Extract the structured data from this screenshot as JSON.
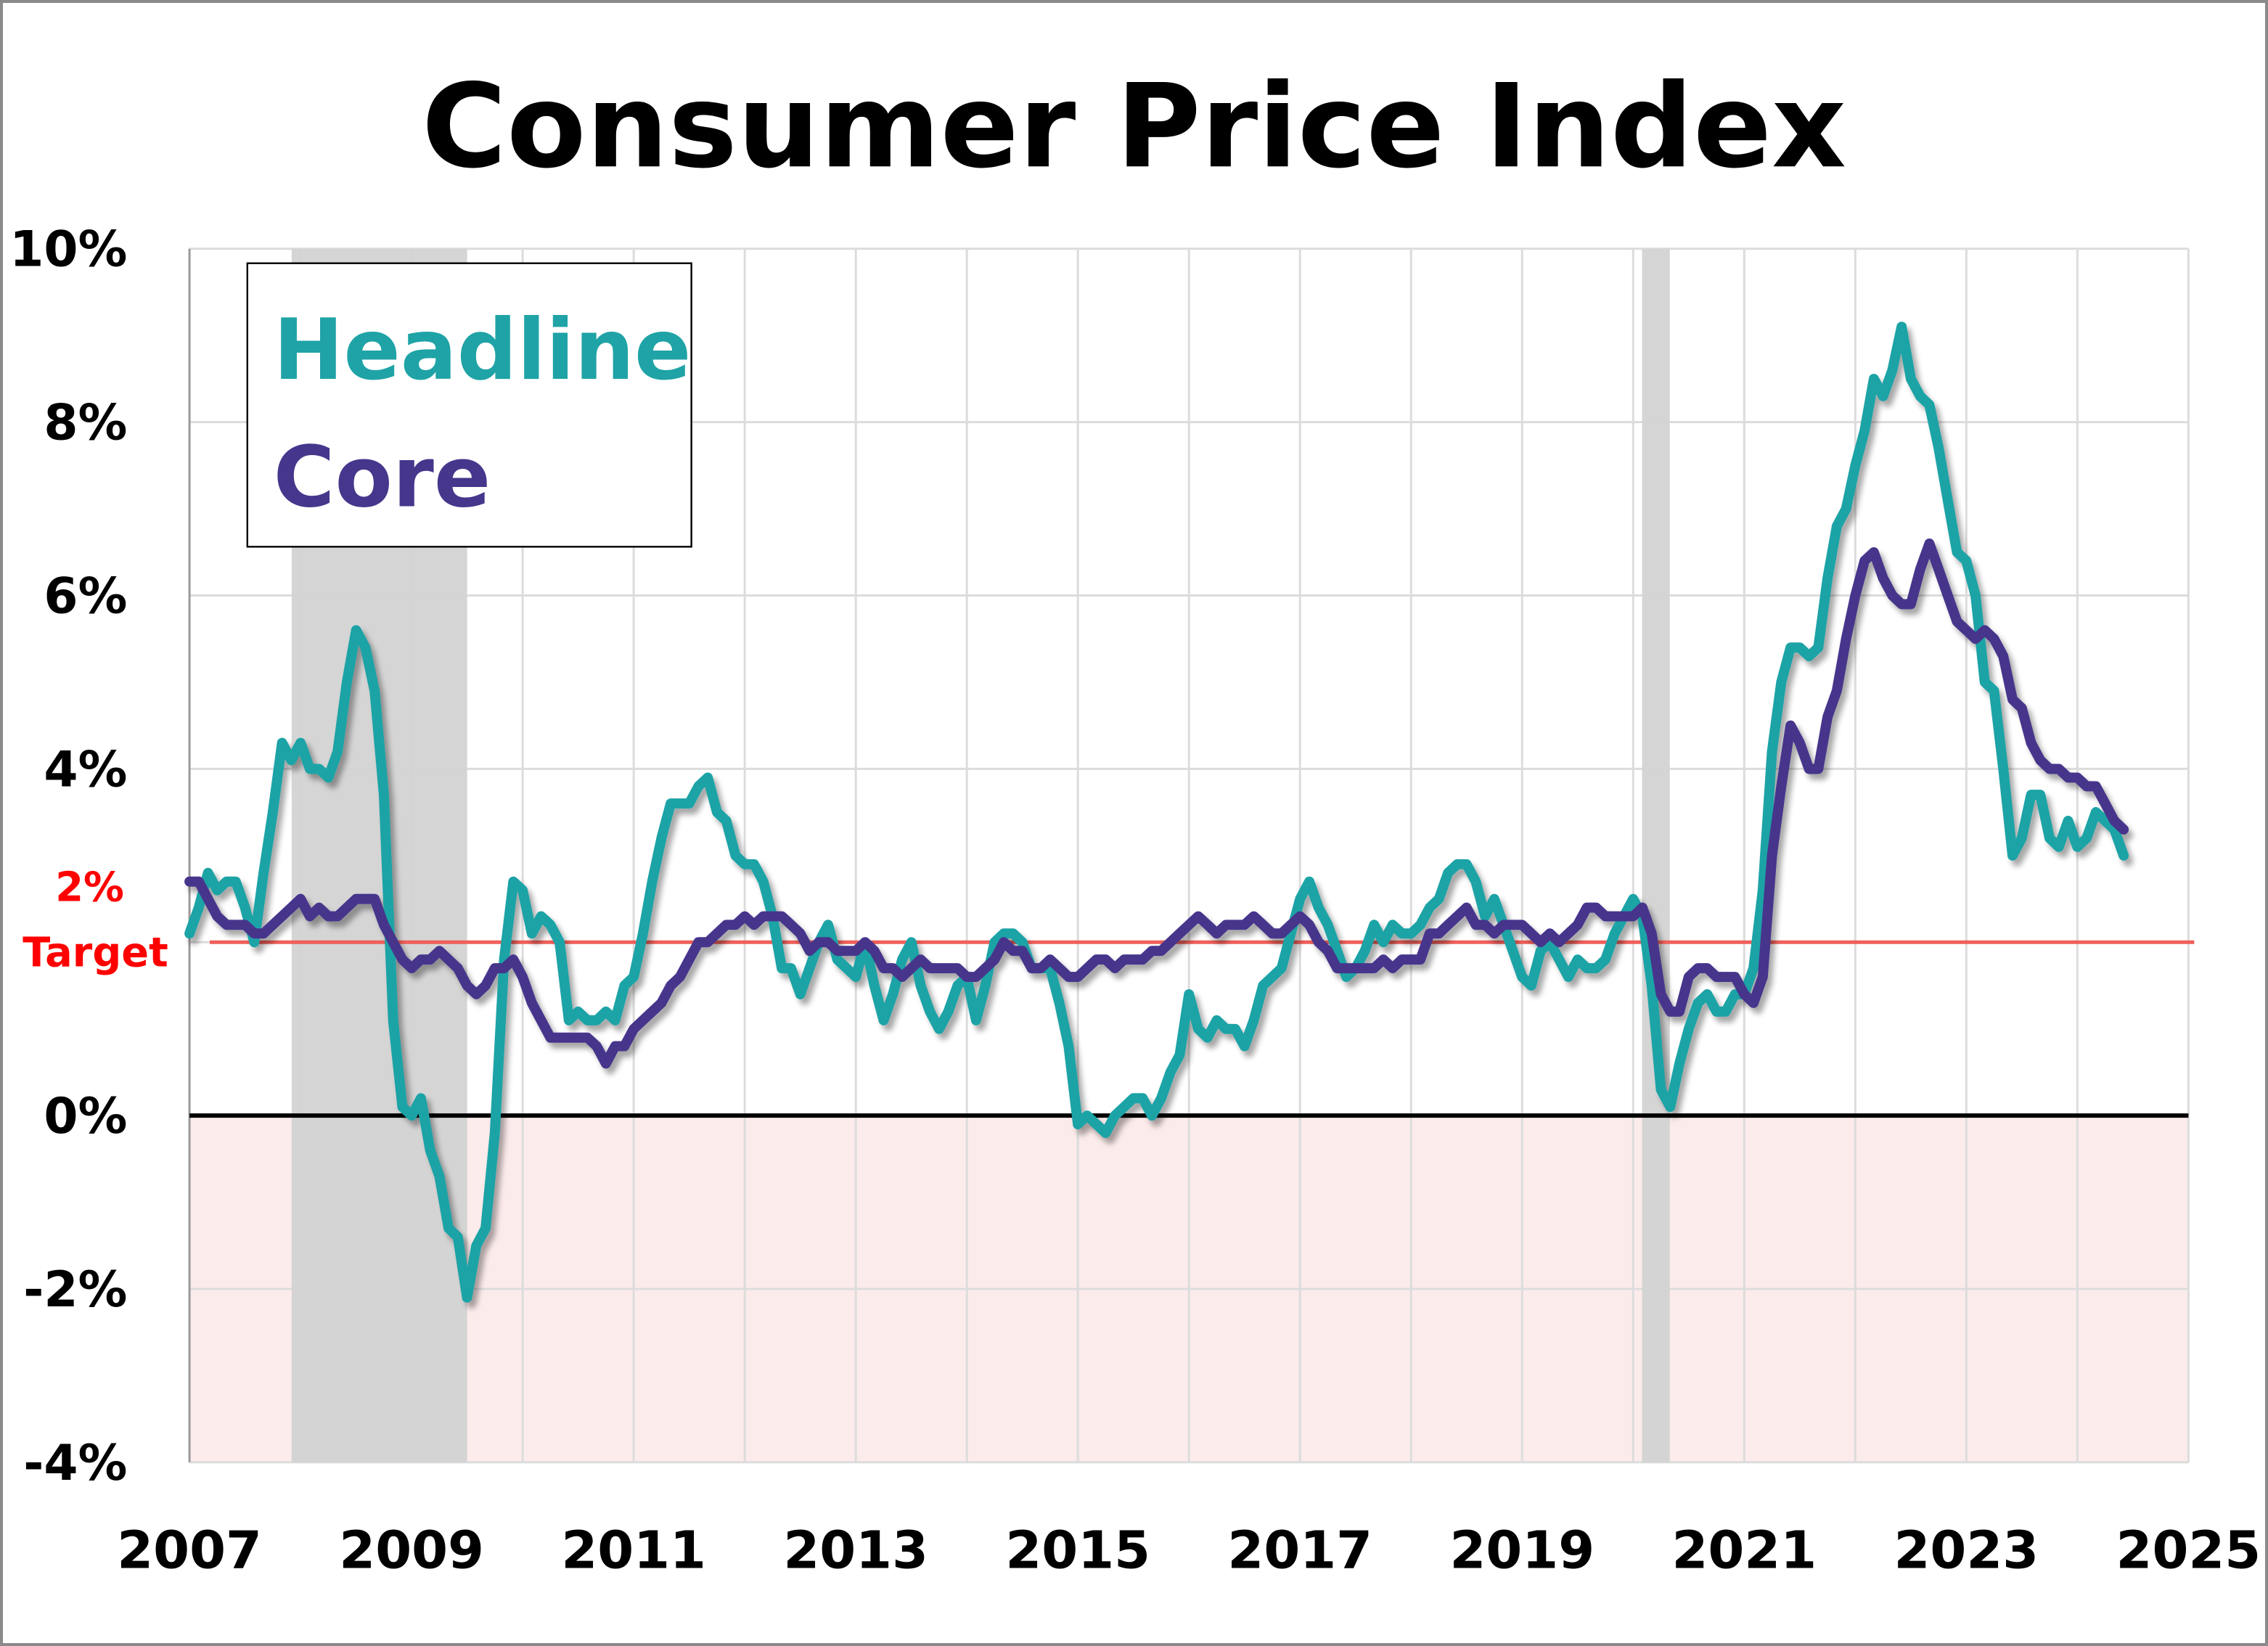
{
  "chart_data": {
    "type": "line",
    "title": "Consumer Price Index",
    "xlabel": "",
    "ylabel": "",
    "xlim": [
      2007,
      2025
    ],
    "ylim": [
      -4,
      10
    ],
    "x_ticks": [
      "2007",
      "2009",
      "2011",
      "2013",
      "2015",
      "2017",
      "2019",
      "2021",
      "2023",
      "2025"
    ],
    "y_ticks": [
      "10%",
      "8%",
      "6%",
      "4%",
      "2%",
      "0%",
      "-2%",
      "-4%"
    ],
    "y_tick_values": [
      10,
      8,
      6,
      4,
      2,
      0,
      -2,
      -4
    ],
    "grid": true,
    "legend": {
      "placement": "top-left",
      "entries": [
        "Headline",
        "Core"
      ]
    },
    "target": {
      "value": 2,
      "label_top": "2%",
      "label_bottom": "Target",
      "color": "#F0605A"
    },
    "recessions": [
      [
        2007.92,
        2009.5
      ],
      [
        2020.08,
        2020.33
      ]
    ],
    "start": "2007-01",
    "frequency": "monthly",
    "colors": {
      "Headline": "#1FA3A6",
      "Core": "#46368C",
      "target_text": "#FF0000",
      "deflation_zone": "#FCEBEB",
      "recession": "#D3D3D3"
    },
    "series": [
      {
        "name": "Headline",
        "values": [
          2.1,
          2.4,
          2.8,
          2.6,
          2.7,
          2.7,
          2.4,
          2.0,
          2.8,
          3.5,
          4.3,
          4.1,
          4.3,
          4.0,
          4.0,
          3.9,
          4.2,
          5.0,
          5.6,
          5.4,
          4.9,
          3.7,
          1.1,
          0.1,
          0.0,
          0.2,
          -0.4,
          -0.7,
          -1.3,
          -1.4,
          -2.1,
          -1.5,
          -1.3,
          -0.2,
          1.8,
          2.7,
          2.6,
          2.1,
          2.3,
          2.2,
          2.0,
          1.1,
          1.2,
          1.1,
          1.1,
          1.2,
          1.1,
          1.5,
          1.6,
          2.1,
          2.7,
          3.2,
          3.6,
          3.6,
          3.6,
          3.8,
          3.9,
          3.5,
          3.4,
          3.0,
          2.9,
          2.9,
          2.7,
          2.3,
          1.7,
          1.7,
          1.4,
          1.7,
          2.0,
          2.2,
          1.8,
          1.7,
          1.6,
          2.0,
          1.5,
          1.1,
          1.4,
          1.8,
          2.0,
          1.5,
          1.2,
          1.0,
          1.2,
          1.5,
          1.6,
          1.1,
          1.5,
          2.0,
          2.1,
          2.1,
          2.0,
          1.7,
          1.7,
          1.7,
          1.3,
          0.8,
          -0.1,
          0.0,
          -0.1,
          -0.2,
          0.0,
          0.1,
          0.2,
          0.2,
          0.0,
          0.2,
          0.5,
          0.7,
          1.4,
          1.0,
          0.9,
          1.1,
          1.0,
          1.0,
          0.8,
          1.1,
          1.5,
          1.6,
          1.7,
          2.1,
          2.5,
          2.7,
          2.4,
          2.2,
          1.9,
          1.6,
          1.7,
          1.9,
          2.2,
          2.0,
          2.2,
          2.1,
          2.1,
          2.2,
          2.4,
          2.5,
          2.8,
          2.9,
          2.9,
          2.7,
          2.3,
          2.5,
          2.2,
          1.9,
          1.6,
          1.5,
          1.9,
          2.0,
          1.8,
          1.6,
          1.8,
          1.7,
          1.7,
          1.8,
          2.1,
          2.3,
          2.5,
          2.3,
          1.5,
          0.3,
          0.1,
          0.6,
          1.0,
          1.3,
          1.4,
          1.2,
          1.2,
          1.4,
          1.4,
          1.7,
          2.6,
          4.2,
          5.0,
          5.4,
          5.4,
          5.3,
          5.4,
          6.2,
          6.8,
          7.0,
          7.5,
          7.9,
          8.5,
          8.3,
          8.6,
          9.1,
          8.5,
          8.3,
          8.2,
          7.7,
          7.1,
          6.5,
          6.4,
          6.0,
          5.0,
          4.9,
          4.0,
          3.0,
          3.2,
          3.7,
          3.7,
          3.2,
          3.1,
          3.4,
          3.1,
          3.2,
          3.5,
          3.4,
          3.3,
          3.0
        ]
      },
      {
        "name": "Core",
        "values": [
          2.7,
          2.7,
          2.5,
          2.3,
          2.2,
          2.2,
          2.2,
          2.1,
          2.1,
          2.2,
          2.3,
          2.4,
          2.5,
          2.3,
          2.4,
          2.3,
          2.3,
          2.4,
          2.5,
          2.5,
          2.5,
          2.2,
          2.0,
          1.8,
          1.7,
          1.8,
          1.8,
          1.9,
          1.8,
          1.7,
          1.5,
          1.4,
          1.5,
          1.7,
          1.7,
          1.8,
          1.6,
          1.3,
          1.1,
          0.9,
          0.9,
          0.9,
          0.9,
          0.9,
          0.8,
          0.6,
          0.8,
          0.8,
          1.0,
          1.1,
          1.2,
          1.3,
          1.5,
          1.6,
          1.8,
          2.0,
          2.0,
          2.1,
          2.2,
          2.2,
          2.3,
          2.2,
          2.3,
          2.3,
          2.3,
          2.2,
          2.1,
          1.9,
          2.0,
          2.0,
          1.9,
          1.9,
          1.9,
          2.0,
          1.9,
          1.7,
          1.7,
          1.6,
          1.7,
          1.8,
          1.7,
          1.7,
          1.7,
          1.7,
          1.6,
          1.6,
          1.7,
          1.8,
          2.0,
          1.9,
          1.9,
          1.7,
          1.7,
          1.8,
          1.7,
          1.6,
          1.6,
          1.7,
          1.8,
          1.8,
          1.7,
          1.8,
          1.8,
          1.8,
          1.9,
          1.9,
          2.0,
          2.1,
          2.2,
          2.3,
          2.2,
          2.1,
          2.2,
          2.2,
          2.2,
          2.3,
          2.2,
          2.1,
          2.1,
          2.2,
          2.3,
          2.2,
          2.0,
          1.9,
          1.7,
          1.7,
          1.7,
          1.7,
          1.7,
          1.8,
          1.7,
          1.8,
          1.8,
          1.8,
          2.1,
          2.1,
          2.2,
          2.3,
          2.4,
          2.2,
          2.2,
          2.1,
          2.2,
          2.2,
          2.2,
          2.1,
          2.0,
          2.1,
          2.0,
          2.1,
          2.2,
          2.4,
          2.4,
          2.3,
          2.3,
          2.3,
          2.3,
          2.4,
          2.1,
          1.4,
          1.2,
          1.2,
          1.6,
          1.7,
          1.7,
          1.6,
          1.6,
          1.6,
          1.4,
          1.3,
          1.6,
          3.0,
          3.8,
          4.5,
          4.3,
          4.0,
          4.0,
          4.6,
          4.9,
          5.5,
          6.0,
          6.4,
          6.5,
          6.2,
          6.0,
          5.9,
          5.9,
          6.3,
          6.6,
          6.3,
          6.0,
          5.7,
          5.6,
          5.5,
          5.6,
          5.5,
          5.3,
          4.8,
          4.7,
          4.3,
          4.1,
          4.0,
          4.0,
          3.9,
          3.9,
          3.8,
          3.8,
          3.6,
          3.4,
          3.3
        ]
      }
    ]
  }
}
